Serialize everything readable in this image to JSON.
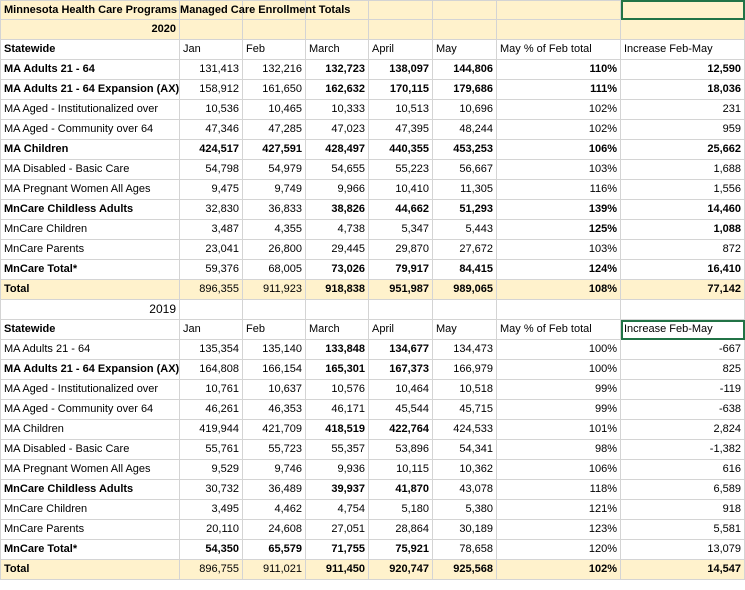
{
  "title": "Minnesota Health Care Programs Managed Care Enrollment Totals",
  "section_2020": {
    "year": "2020",
    "headers": [
      "Statewide",
      "Jan",
      "Feb",
      "March",
      "April",
      "May",
      "May % of Feb total",
      "Increase Feb-May"
    ],
    "rows": [
      [
        "MA Adults 21 - 64",
        "131,413",
        "132,216",
        "132,723",
        "138,097",
        "144,806",
        "110%",
        "12,590"
      ],
      [
        "MA Adults 21 - 64 Expansion (AX)",
        "158,912",
        "161,650",
        "162,632",
        "170,115",
        "179,686",
        "111%",
        "18,036"
      ],
      [
        "MA Aged - Institutionalized over",
        "10,536",
        "10,465",
        "10,333",
        "10,513",
        "10,696",
        "102%",
        "231"
      ],
      [
        "MA Aged - Community over 64",
        "47,346",
        "47,285",
        "47,023",
        "47,395",
        "48,244",
        "102%",
        "959"
      ],
      [
        "MA Children",
        "424,517",
        "427,591",
        "428,497",
        "440,355",
        "453,253",
        "106%",
        "25,662"
      ],
      [
        "MA Disabled - Basic Care",
        "54,798",
        "54,979",
        "54,655",
        "55,223",
        "56,667",
        "103%",
        "1,688"
      ],
      [
        "MA Pregnant Women All Ages",
        "9,475",
        "9,749",
        "9,966",
        "10,410",
        "11,305",
        "116%",
        "1,556"
      ],
      [
        "MnCare Childless Adults",
        "32,830",
        "36,833",
        "38,826",
        "44,662",
        "51,293",
        "139%",
        "14,460"
      ],
      [
        "MnCare Children",
        "3,487",
        "4,355",
        "4,738",
        "5,347",
        "5,443",
        "125%",
        "1,088"
      ],
      [
        "MnCare Parents",
        "23,041",
        "26,800",
        "29,445",
        "29,870",
        "27,672",
        "103%",
        "872"
      ],
      [
        "MnCare Total*",
        "59,376",
        "68,005",
        "73,026",
        "79,917",
        "84,415",
        "124%",
        "16,410"
      ],
      [
        "Total",
        "896,355",
        "911,923",
        "918,838",
        "951,987",
        "989,065",
        "108%",
        "77,142"
      ]
    ]
  },
  "section_2019": {
    "year": "2019",
    "headers": [
      "Statewide",
      "Jan",
      "Feb",
      "March",
      "April",
      "May",
      "May % of Feb total",
      "Increase Feb-May"
    ],
    "rows": [
      [
        "MA Adults 21 - 64",
        "135,354",
        "135,140",
        "133,848",
        "134,677",
        "134,473",
        "100%",
        "-667"
      ],
      [
        "MA Adults 21 - 64 Expansion (AX)",
        "164,808",
        "166,154",
        "165,301",
        "167,373",
        "166,979",
        "100%",
        "825"
      ],
      [
        "MA Aged - Institutionalized over",
        "10,761",
        "10,637",
        "10,576",
        "10,464",
        "10,518",
        "99%",
        "-119"
      ],
      [
        "MA Aged - Community over 64",
        "46,261",
        "46,353",
        "46,171",
        "45,544",
        "45,715",
        "99%",
        "-638"
      ],
      [
        "MA Children",
        "419,944",
        "421,709",
        "418,519",
        "422,764",
        "424,533",
        "101%",
        "2,824"
      ],
      [
        "MA Disabled - Basic Care",
        "55,761",
        "55,723",
        "55,357",
        "53,896",
        "54,341",
        "98%",
        "-1,382"
      ],
      [
        "MA Pregnant Women All Ages",
        "9,529",
        "9,746",
        "9,936",
        "10,115",
        "10,362",
        "106%",
        "616"
      ],
      [
        "MnCare Childless Adults",
        "30,732",
        "36,489",
        "39,937",
        "41,870",
        "43,078",
        "118%",
        "6,589"
      ],
      [
        "MnCare Children",
        "3,495",
        "4,462",
        "4,754",
        "5,180",
        "5,380",
        "121%",
        "918"
      ],
      [
        "MnCare Parents",
        "20,110",
        "24,608",
        "27,051",
        "28,864",
        "30,189",
        "123%",
        "5,581"
      ],
      [
        "MnCare Total*",
        "54,350",
        "65,579",
        "71,755",
        "75,921",
        "78,658",
        "120%",
        "13,079"
      ],
      [
        "Total",
        "896,755",
        "911,021",
        "911,450",
        "920,747",
        "925,568",
        "102%",
        "14,547"
      ]
    ]
  }
}
